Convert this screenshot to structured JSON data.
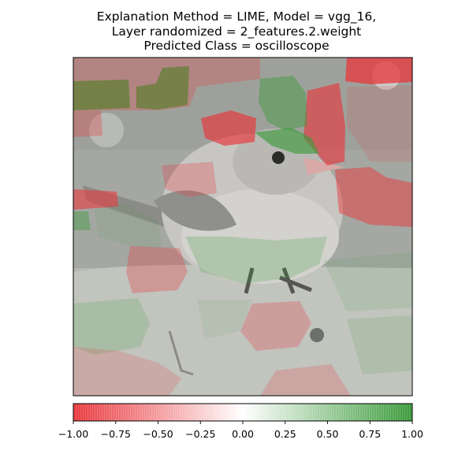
{
  "chart_data": {
    "type": "heatmap",
    "title": "Explanation Method = LIME, Model = vgg_16,\nLayer randomized = 2_features.2.weight\nPredicted Class = oscilloscope",
    "title_lines": [
      "Explanation Method = LIME, Model = vgg_16,",
      "Layer randomized = 2_features.2.weight",
      "Predicted Class = oscilloscope"
    ],
    "image_subject": "bird perched on a rock",
    "image_axes_ticks": "none",
    "colorbar": {
      "orientation": "horizontal",
      "cmap": "red-white-green",
      "vmin": -1.0,
      "vmax": 1.0,
      "low_color": "#e8383d",
      "mid_color": "#ffffff",
      "high_color": "#3a9a3a",
      "ticks": [
        -1.0,
        -0.75,
        -0.5,
        -0.25,
        0.0,
        0.25,
        0.5,
        0.75,
        1.0
      ],
      "tick_labels": [
        "−1.00",
        "−0.75",
        "−0.50",
        "−0.25",
        "0.00",
        "0.25",
        "0.50",
        "0.75",
        "1.00"
      ]
    },
    "segments": [
      {
        "name": "top-left-strong-positive",
        "value": 0.95
      },
      {
        "name": "top-left-2-strong-positive",
        "value": 0.9
      },
      {
        "name": "top-right-strong-negative",
        "value": -0.85
      },
      {
        "name": "right-upper-negative",
        "value": -0.7
      },
      {
        "name": "center-top-negative",
        "value": -0.75
      },
      {
        "name": "bird-head-positive",
        "value": 0.7
      },
      {
        "name": "right-mid-negative",
        "value": -0.55
      },
      {
        "name": "left-edge-negative",
        "value": -0.65
      },
      {
        "name": "left-edge-positive",
        "value": 0.45
      },
      {
        "name": "green-top-mid",
        "value": 0.5
      },
      {
        "name": "upper-left-negative",
        "value": -0.35
      },
      {
        "name": "upper-mid-negative",
        "value": -0.3
      },
      {
        "name": "bird-body-negative",
        "value": -0.3
      },
      {
        "name": "bird-belly-positive",
        "value": 0.25
      },
      {
        "name": "lower-negative",
        "value": -0.35
      },
      {
        "name": "rock-positive",
        "value": 0.2
      },
      {
        "name": "rock-negative",
        "value": -0.3
      },
      {
        "name": "bottom-left-negative",
        "value": -0.2
      },
      {
        "name": "bottom-right-negative",
        "value": -0.25
      }
    ]
  }
}
